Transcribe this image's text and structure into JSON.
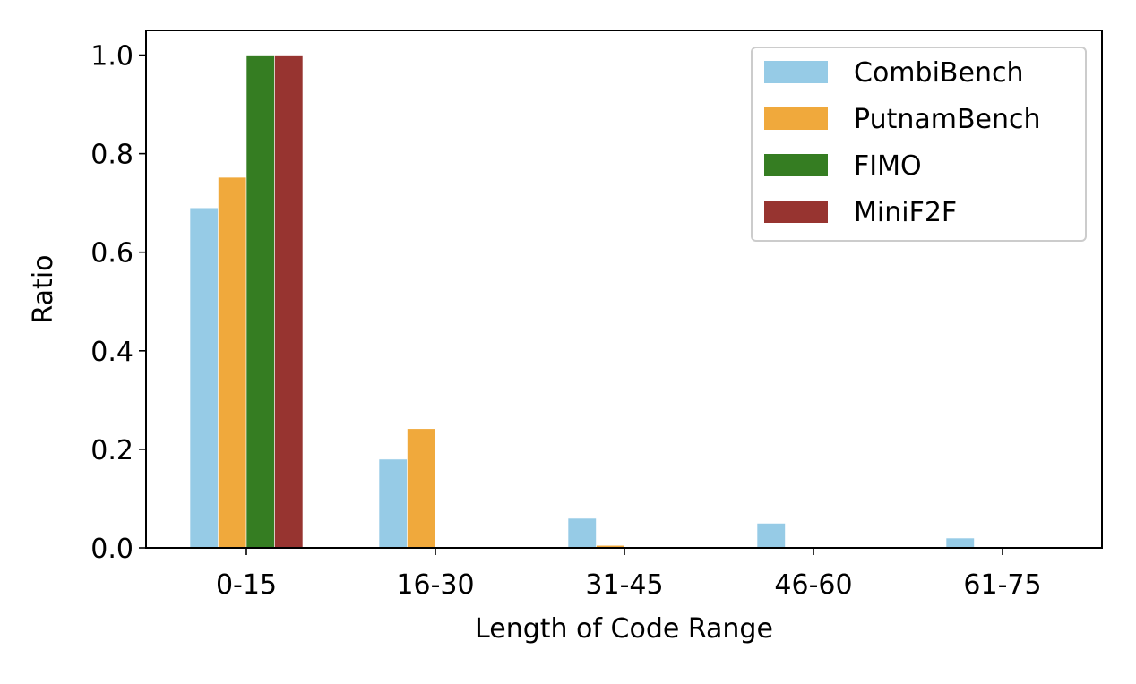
{
  "chart_data": {
    "type": "bar",
    "title": "",
    "xlabel": "Length of Code Range",
    "ylabel": "Ratio",
    "categories": [
      "0-15",
      "16-30",
      "31-45",
      "46-60",
      "61-75"
    ],
    "series": [
      {
        "name": "CombiBench",
        "color": "#96cbe6",
        "values": [
          0.69,
          0.18,
          0.06,
          0.05,
          0.02
        ]
      },
      {
        "name": "PutnamBench",
        "color": "#f0a93c",
        "values": [
          0.752,
          0.242,
          0.005,
          0.0,
          0.0
        ]
      },
      {
        "name": "FIMO",
        "color": "#357d22",
        "values": [
          1.0,
          0.0,
          0.0,
          0.0,
          0.0
        ]
      },
      {
        "name": "MiniF2F",
        "color": "#973430",
        "values": [
          1.0,
          0.0,
          0.0,
          0.0,
          0.0
        ]
      }
    ],
    "ylim": [
      0,
      1.05
    ],
    "yticks": [
      "0.0",
      "0.2",
      "0.4",
      "0.6",
      "0.8",
      "1.0"
    ],
    "grid": false,
    "legend_position": "top-right"
  }
}
